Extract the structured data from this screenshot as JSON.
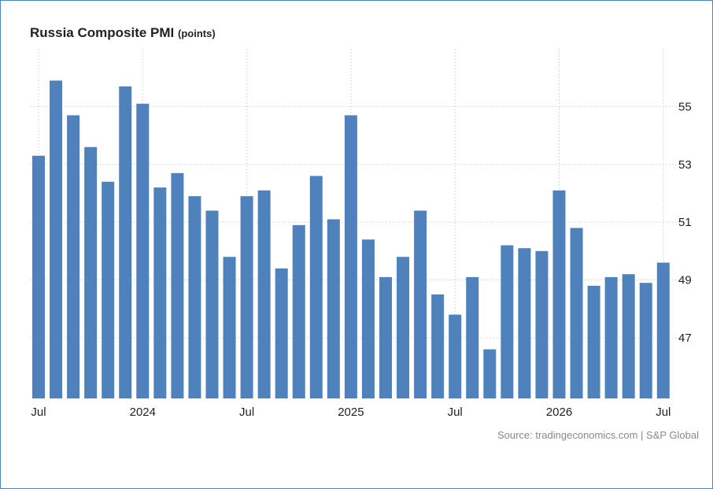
{
  "title": "Russia Composite PMI",
  "title_unit": "(points)",
  "source": "Source: tradingeconomics.com | S&P Global",
  "colors": {
    "bar": "#4f81bd",
    "grid": "#d9d9d9",
    "frame": "#4a86c5"
  },
  "chart_data": {
    "type": "bar",
    "title": "Russia Composite PMI (points)",
    "xlabel": "",
    "ylabel": "",
    "ylim": [
      44.9,
      57.0
    ],
    "y_ticks": [
      47,
      49,
      51,
      53,
      55
    ],
    "grid": true,
    "values": [
      53.3,
      55.9,
      54.7,
      53.6,
      52.4,
      55.7,
      55.1,
      52.2,
      52.7,
      51.9,
      51.4,
      49.8,
      51.9,
      52.1,
      49.4,
      50.9,
      52.6,
      51.1,
      54.7,
      50.4,
      49.1,
      49.8,
      51.4,
      48.5,
      47.8,
      49.1,
      46.6,
      50.2,
      50.1,
      50.0,
      52.1,
      50.8,
      48.8,
      49.1,
      49.2,
      48.9,
      49.6
    ],
    "x_tick_labels": [
      {
        "index": 0,
        "label": "Jul"
      },
      {
        "index": 6,
        "label": "2024"
      },
      {
        "index": 12,
        "label": "Jul"
      },
      {
        "index": 18,
        "label": "2025"
      },
      {
        "index": 24,
        "label": "Jul"
      },
      {
        "index": 30,
        "label": "2026"
      },
      {
        "index": 36,
        "label": "Jul"
      }
    ]
  }
}
